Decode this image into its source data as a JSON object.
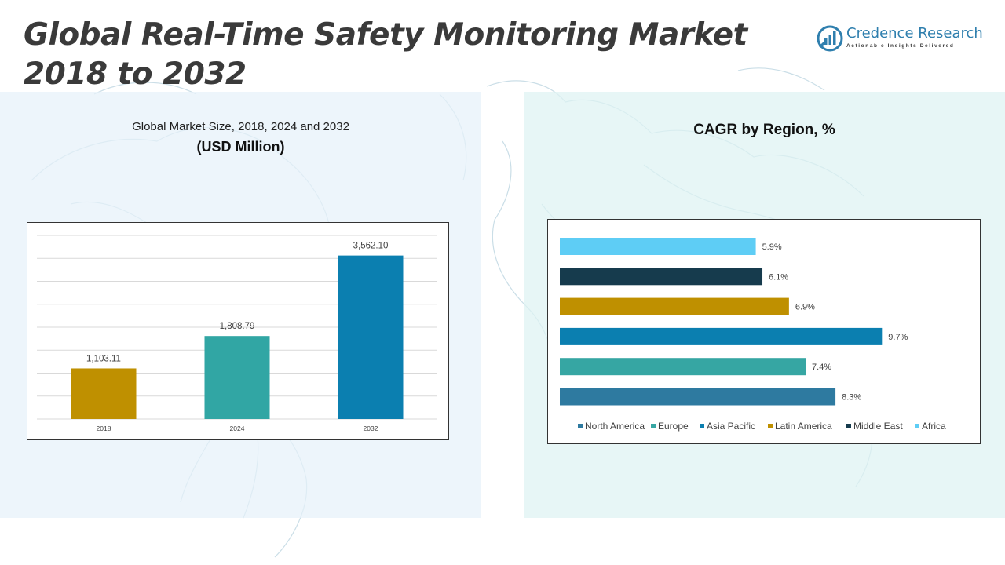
{
  "page": {
    "title": "Global Real-Time Safety Monitoring Market 2018 to 2032"
  },
  "logo": {
    "name": "Credence Research",
    "tagline": "Actionable Insights Delivered"
  },
  "colors": {
    "brand": "#2f7fae",
    "left_panel": "#e6f1fa",
    "right_panel": "#def3f3"
  },
  "left_panel": {
    "subtitle": "Global Market Size, 2018, 2024 and 2032",
    "unit": "(USD Million)"
  },
  "right_panel": {
    "title": "CAGR by Region, %"
  },
  "chart_data": [
    {
      "type": "bar",
      "orientation": "vertical",
      "title": "Global Market Size, 2018, 2024 and 2032",
      "ylabel": "(USD Million)",
      "categories": [
        "2018",
        "2024",
        "2032"
      ],
      "values": [
        1103.11,
        1808.79,
        3562.1
      ],
      "value_labels": [
        "1,103.11",
        "1,808.79",
        "3,562.10"
      ],
      "colors": [
        "#bf9000",
        "#31a6a4",
        "#0b7fb0"
      ],
      "ylim": [
        0,
        4000
      ],
      "grid": true
    },
    {
      "type": "bar",
      "orientation": "horizontal",
      "title": "CAGR by Region, %",
      "categories": [
        "North America",
        "Europe",
        "Asia Pacific",
        "Latin America",
        "Middle East",
        "Africa"
      ],
      "values": [
        8.3,
        7.4,
        9.7,
        6.9,
        6.1,
        5.9
      ],
      "value_labels": [
        "8.3%",
        "7.4%",
        "9.7%",
        "6.9%",
        "6.1%",
        "5.9%"
      ],
      "colors": [
        "#2e7aa0",
        "#36a6a3",
        "#0b7fb0",
        "#bf9000",
        "#163b4d",
        "#5ecdf5"
      ],
      "legend": [
        "North America",
        "Europe",
        "Asia Pacific",
        "Latin America",
        "Middle East",
        "Africa"
      ],
      "legend_position": "bottom",
      "xlim": [
        0,
        10
      ]
    }
  ]
}
